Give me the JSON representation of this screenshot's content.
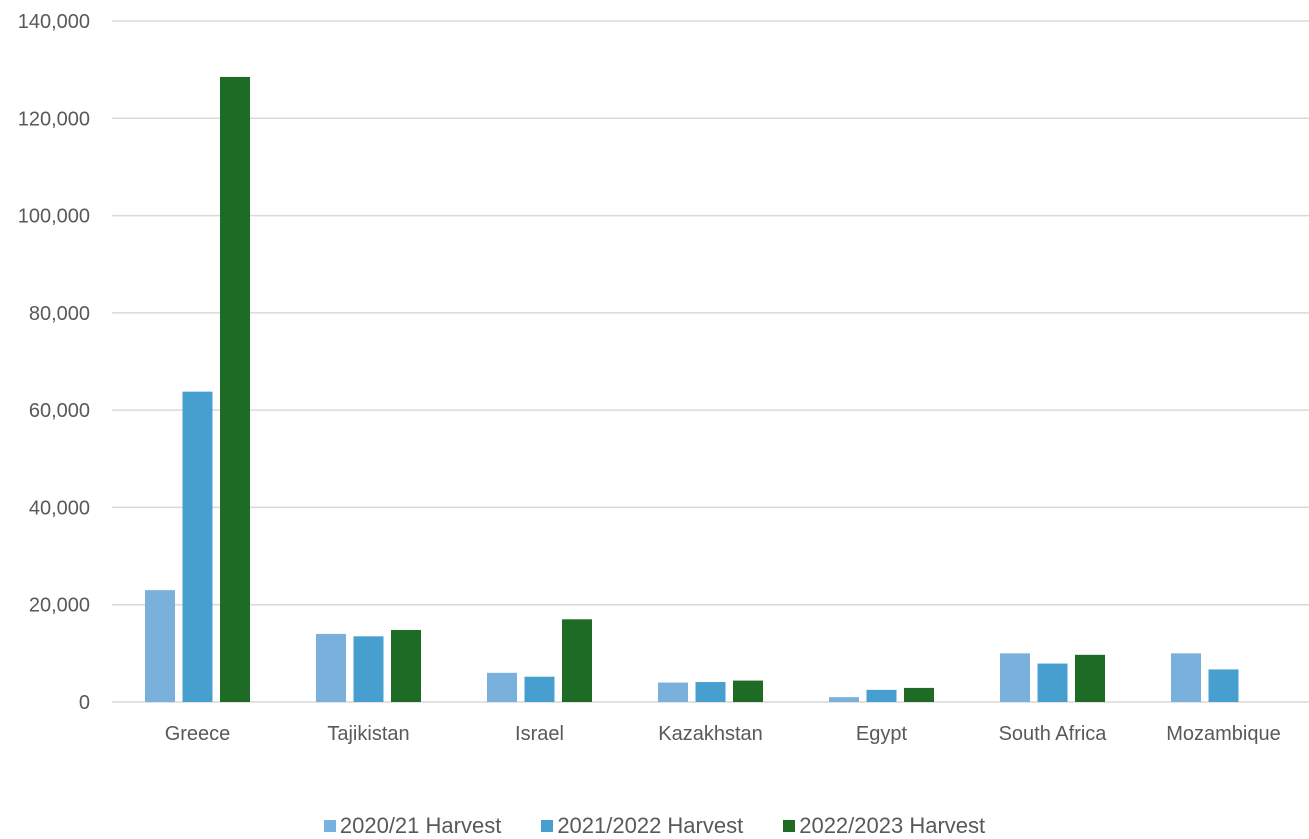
{
  "chart_data": {
    "type": "bar",
    "categories": [
      "Greece",
      "Tajikistan",
      "Israel",
      "Kazakhstan",
      "Egypt",
      "South Africa",
      "Mozambique"
    ],
    "series": [
      {
        "name": "2020/21 Harvest",
        "color": "#79b0dc",
        "values": [
          23000,
          14000,
          6000,
          4000,
          1000,
          10000,
          10000
        ]
      },
      {
        "name": "2021/2022 Harvest",
        "color": "#479fcf",
        "values": [
          63800,
          13500,
          5200,
          4100,
          2500,
          7900,
          6700
        ]
      },
      {
        "name": "2022/2023 Harvest",
        "color": "#1d6b24",
        "values": [
          128500,
          14800,
          17000,
          4400,
          2900,
          9700,
          0
        ]
      }
    ],
    "yticks": [
      "0",
      "20,000",
      "40,000",
      "60,000",
      "80,000",
      "100,000",
      "120,000",
      "140,000"
    ],
    "ylim": [
      0,
      140000
    ],
    "grid": true,
    "legend_position": "bottom"
  }
}
